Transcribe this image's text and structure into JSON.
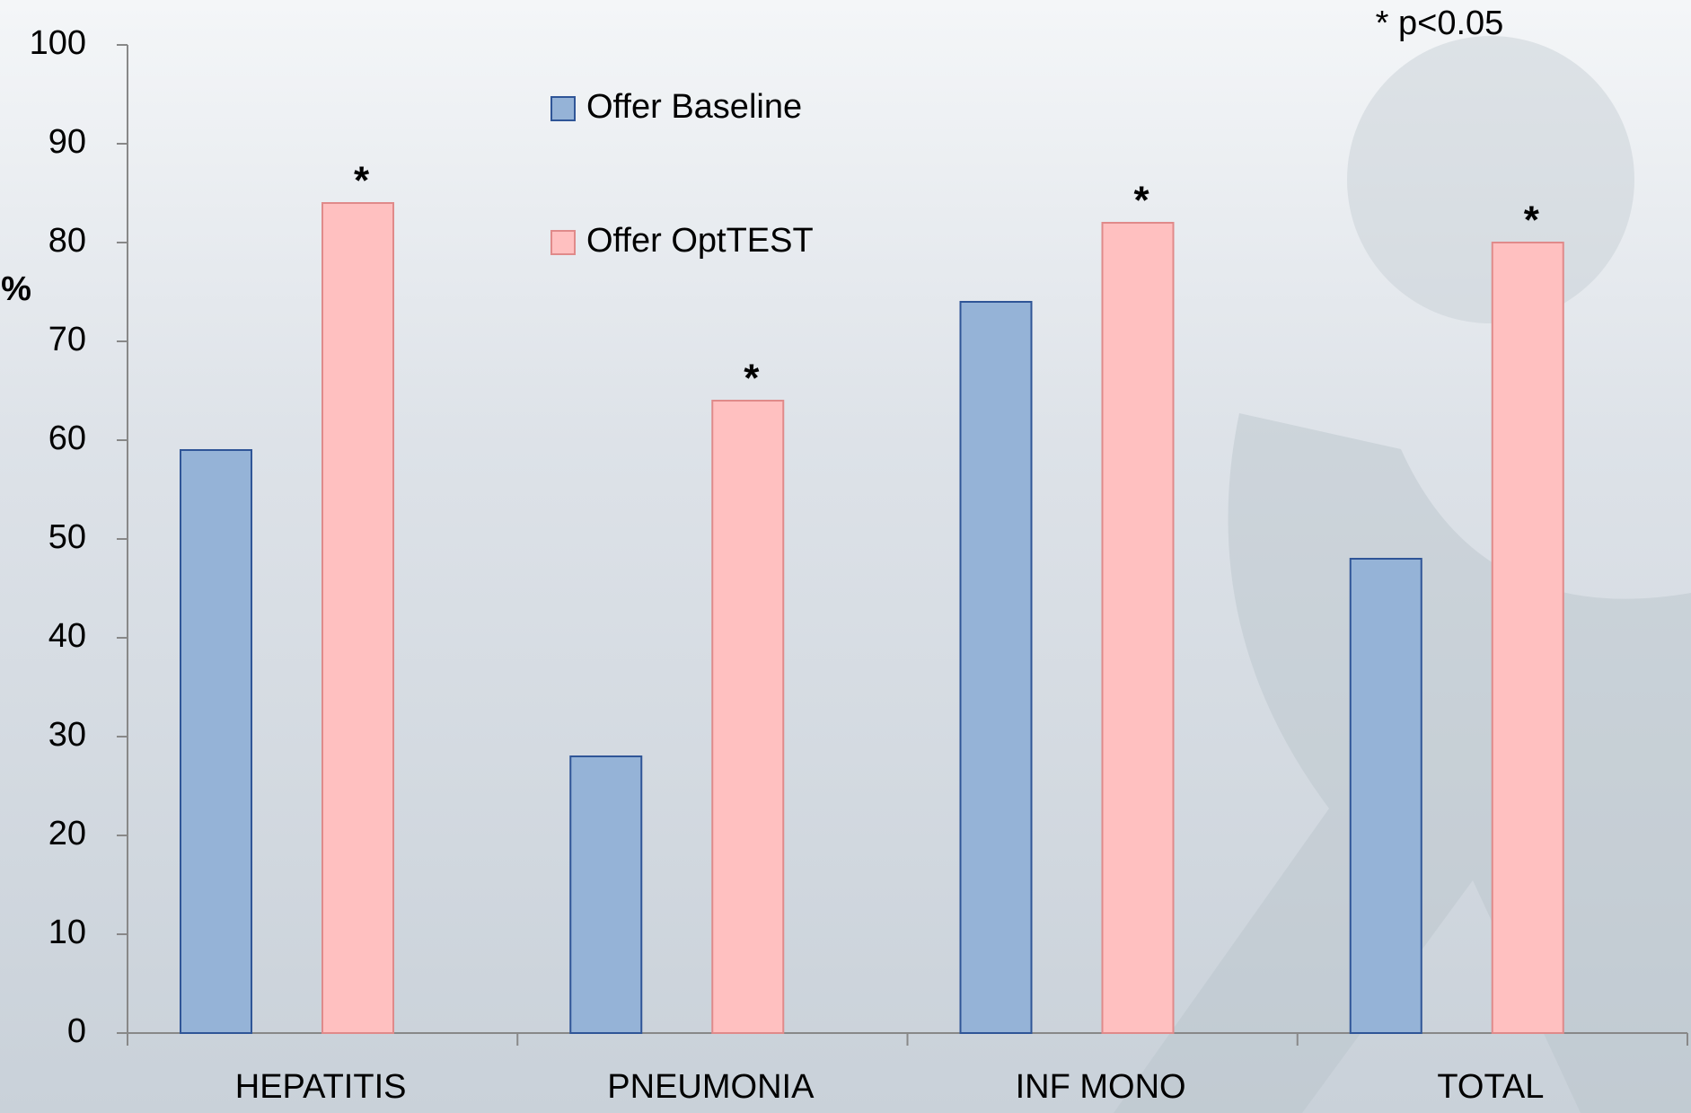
{
  "chart_data": {
    "type": "bar",
    "ylabel": "%",
    "note": "* p<0.05",
    "categories": [
      "HEPATITIS",
      "PNEUMONIA",
      "INF MONO",
      "TOTAL"
    ],
    "series": [
      {
        "name": "Offer Baseline",
        "color": "#95b3d7",
        "edge": "#2f5597",
        "values": [
          59,
          28,
          74,
          48
        ]
      },
      {
        "name": "Offer OptTEST",
        "color": "#ffc0c0",
        "edge": "#e08a8a",
        "values": [
          84,
          64,
          82,
          80
        ],
        "significance_marks": [
          "*",
          "*",
          "*",
          "*"
        ]
      }
    ],
    "ylim": [
      0,
      100
    ],
    "yticks": [
      0,
      10,
      20,
      30,
      40,
      50,
      60,
      70,
      80,
      90,
      100
    ]
  }
}
